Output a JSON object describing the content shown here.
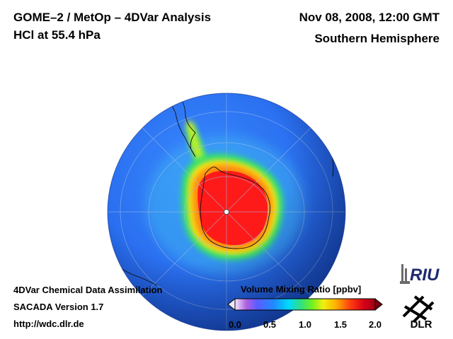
{
  "header": {
    "title_line1": "GOME–2 / MetOp – 4DVar Analysis",
    "title_line2": "HCl at 55.4 hPa",
    "datetime": "Nov 08, 2008, 12:00 GMT",
    "region": "Southern Hemisphere"
  },
  "footer": {
    "line1": "4DVar Chemical Data Assimilation",
    "line2": "SACADA Version 1.7",
    "line3": "http://wdc.dlr.de"
  },
  "colorbar": {
    "title": "Volume Mixing Ratio [ppbv]",
    "ticks": [
      "0.0",
      "0.5",
      "1.0",
      "1.5",
      "2.0"
    ],
    "range": [
      0.0,
      2.0
    ],
    "colors": [
      "#8a2be2",
      "#4a6cff",
      "#1e90ff",
      "#00d0ff",
      "#20e0a0",
      "#40e040",
      "#d8f020",
      "#ffe000",
      "#ff9000",
      "#ff3020",
      "#e00020",
      "#a00018"
    ]
  },
  "map": {
    "ocean_color": "#2f6df0",
    "hcl_peak_color": "#ff1a1a",
    "icons": [
      "south-pole-marker-icon"
    ]
  },
  "logos": {
    "riu": "RIU",
    "dlr": "DLR"
  }
}
